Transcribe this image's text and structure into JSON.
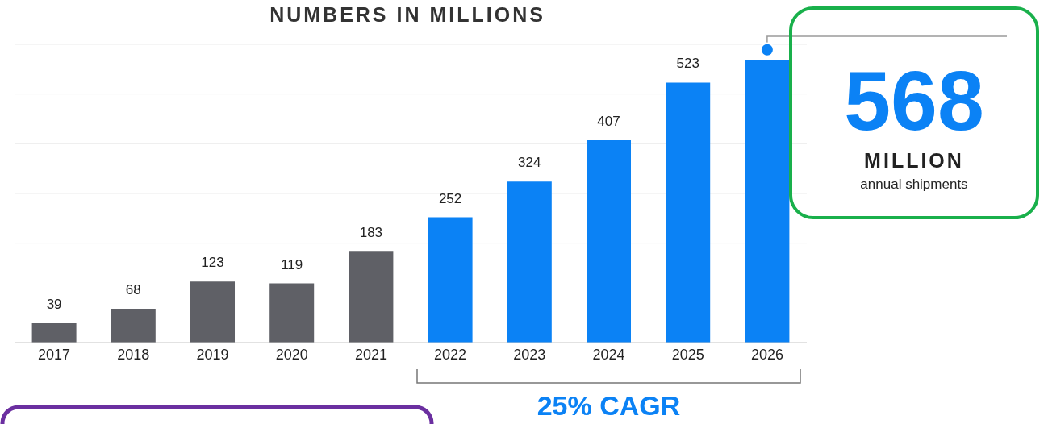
{
  "chart_data": {
    "type": "bar",
    "title": "NUMBERS IN MILLIONS",
    "categories": [
      "2017",
      "2018",
      "2019",
      "2020",
      "2021",
      "2022",
      "2023",
      "2024",
      "2025",
      "2026"
    ],
    "values": [
      39,
      68,
      123,
      119,
      183,
      252,
      324,
      407,
      523,
      568
    ],
    "colors": [
      "#5f6066",
      "#5f6066",
      "#5f6066",
      "#5f6066",
      "#5f6066",
      "#0b82f5",
      "#0b82f5",
      "#0b82f5",
      "#0b82f5",
      "#0b82f5"
    ],
    "value_labels": [
      "39",
      "68",
      "123",
      "119",
      "183",
      "252",
      "324",
      "407",
      "523",
      null
    ],
    "ylim": [
      0,
      600
    ],
    "yticks": [
      {
        "value": 200,
        "label": null
      },
      {
        "value": 300,
        "label": null
      },
      {
        "value": 400,
        "label": null
      },
      {
        "value": 500,
        "label": null
      },
      {
        "value": 600,
        "label": null
      }
    ],
    "grid": "y",
    "legend": false,
    "tick_labels": "x",
    "annotations": [
      {
        "text": "568",
        "x": "2026",
        "y": 568
      },
      "MILLION",
      "annual shipments",
      "25% CAGR"
    ]
  }
}
